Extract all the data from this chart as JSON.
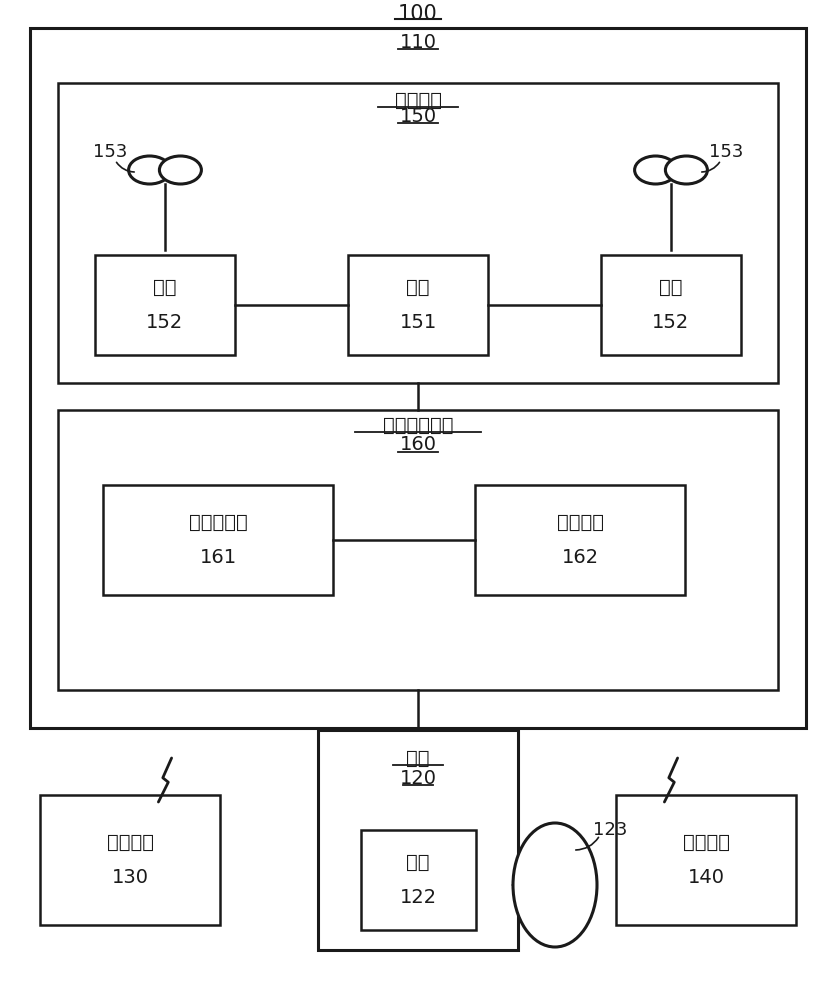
{
  "bg_color": "#ffffff",
  "line_color": "#1a1a1a",
  "text_color": "#1a1a1a",
  "fig_width": 8.36,
  "fig_height": 10.0,
  "label_100": "100",
  "label_110": "110",
  "label_150": "150",
  "label_150_text": "动力系统",
  "label_160": "160",
  "label_160_text": "飞行控制系统",
  "label_151_text": "电调",
  "label_151_num": "151",
  "label_152_text": "电机",
  "label_152_num": "152",
  "label_153_num": "153",
  "label_161_text": "飞行控制器",
  "label_161_num": "161",
  "label_162_text": "传感系统",
  "label_162_num": "162",
  "label_120_text": "云台",
  "label_120_num": "120",
  "label_122_text": "电机",
  "label_122_num": "122",
  "label_123_num": "123",
  "label_130_text": "显示设备",
  "label_130_num": "130",
  "label_140_text": "控制装置",
  "label_140_num": "140"
}
